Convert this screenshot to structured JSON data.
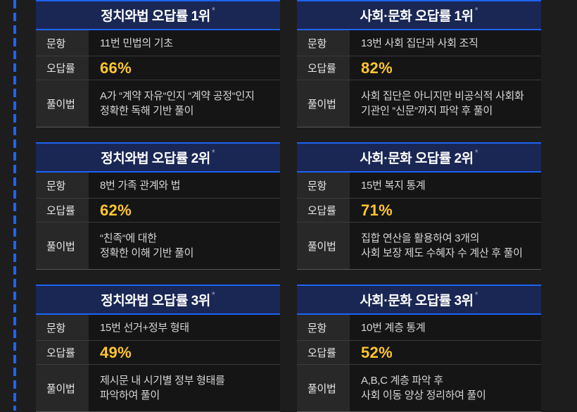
{
  "theme": {
    "background": "#1d1d1d",
    "accent_blue": "#1e63f2",
    "header_navy": "#1a2754",
    "rate_yellow": "#ffc62e"
  },
  "asterisk": "*",
  "row_labels": {
    "question": "문항",
    "rate": "오답률",
    "method": "풀이법"
  },
  "cards": [
    {
      "title": "정치와법 오답률 1위",
      "question": "11번 민법의 기초",
      "rate": "66%",
      "method1": "A가 “계약 자유“인지 “계약 공정“인지",
      "method2": "정확한 독해 기반 풀이"
    },
    {
      "title": "사회·문화 오답률 1위",
      "question": "13번 사회 집단과 사회 조직",
      "rate": "82%",
      "method1": "사회 집단은 아니지만 비공식적 사회화",
      "method2": "기관인 “신문“까지 파악 후 풀이"
    },
    {
      "title": "정치와법 오답률 2위",
      "question": "8번 가족 관계와 법",
      "rate": "62%",
      "method1": "“친족“에 대한",
      "method2": "정확한 이해 기반 풀이"
    },
    {
      "title": "사회·문화 오답률 2위",
      "question": "15번 복지 통계",
      "rate": "71%",
      "method1": "집합 연산을 활용하여 3개의",
      "method2": "사회 보장 제도 수혜자 수 계산 후 풀이"
    },
    {
      "title": "정치와법 오답률 3위",
      "question": "15번 선거+정부 형태",
      "rate": "49%",
      "method1": "제시문 내 시기별 정부 형태를",
      "method2": "파악하여 풀이"
    },
    {
      "title": "사회·문화 오답률 3위",
      "question": "10번 계층 통계",
      "rate": "52%",
      "method1": "A,B,C 계층 파악 후",
      "method2": "사회 이동 양상 정리하여 풀이"
    }
  ]
}
